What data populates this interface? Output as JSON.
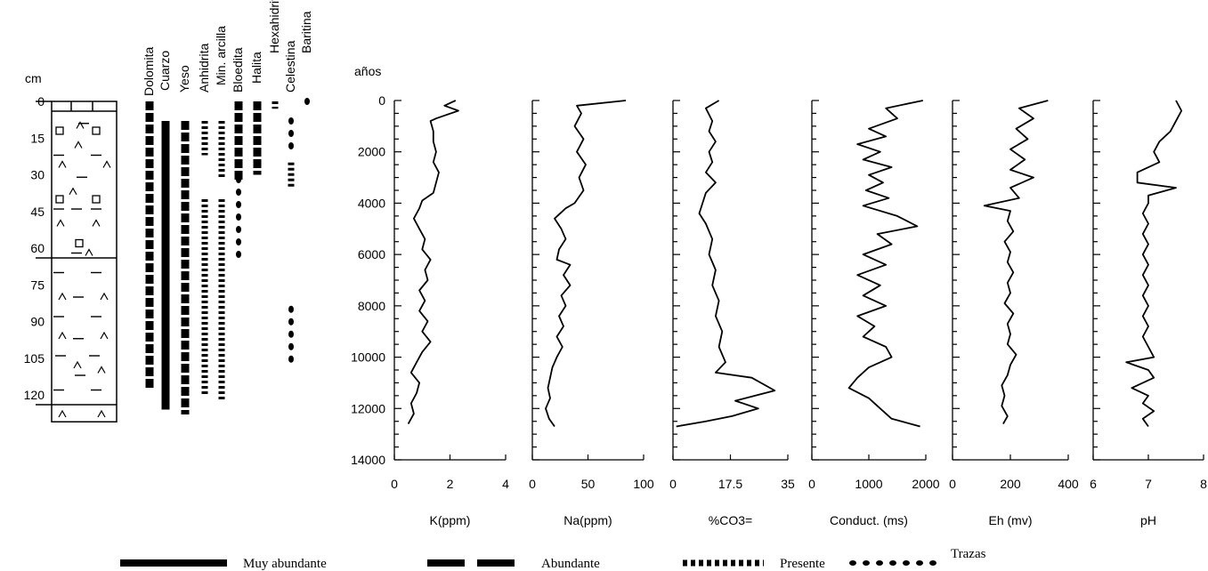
{
  "column": {
    "unit_label": "cm",
    "ticks": [
      "0",
      "15",
      "30",
      "45",
      "60",
      "75",
      "90",
      "105",
      "120"
    ]
  },
  "minerals": {
    "names": [
      "Dolomita",
      "Cuarzo",
      "Yeso",
      "Anhidrita",
      "Min. arcilla",
      "Bloedita",
      "Halita",
      "Hexahidrita",
      "Celestina",
      "Baritina"
    ],
    "occurrence": [
      {
        "name": "Dolomita",
        "segments": [
          {
            "from": 0,
            "to": 118,
            "style": "dashed"
          }
        ]
      },
      {
        "name": "Cuarzo",
        "segments": [
          {
            "from": 8,
            "to": 126,
            "style": "solid"
          }
        ]
      },
      {
        "name": "Yeso",
        "segments": [
          {
            "from": 8,
            "to": 128,
            "style": "dashed"
          }
        ]
      },
      {
        "name": "Anhidrita",
        "segments": [
          {
            "from": 8,
            "to": 22,
            "style": "dotted"
          },
          {
            "from": 40,
            "to": 120,
            "style": "dotted"
          }
        ]
      },
      {
        "name": "Min. arcilla",
        "segments": [
          {
            "from": 8,
            "to": 32,
            "style": "dotted"
          },
          {
            "from": 40,
            "to": 122,
            "style": "dotted"
          }
        ]
      },
      {
        "name": "Bloedita",
        "segments": [
          {
            "from": 0,
            "to": 32,
            "style": "dashed"
          },
          {
            "from": 32,
            "to": 63,
            "style": "dots"
          }
        ]
      },
      {
        "name": "Halita",
        "segments": [
          {
            "from": 0,
            "to": 30,
            "style": "dashed"
          }
        ]
      },
      {
        "name": "Hexahidrita",
        "segments": [
          {
            "from": 0,
            "to": 3,
            "style": "dotted"
          }
        ]
      },
      {
        "name": "Celestina",
        "segments": [
          {
            "from": 8,
            "to": 22,
            "style": "dots"
          },
          {
            "from": 25,
            "to": 35,
            "style": "dotted"
          },
          {
            "from": 85,
            "to": 106,
            "style": "dots"
          }
        ]
      },
      {
        "name": "Baritina",
        "segments": [
          {
            "from": 0,
            "to": 2,
            "style": "dots"
          }
        ]
      }
    ]
  },
  "legend": [
    {
      "style": "solid",
      "label": "Muy abundante"
    },
    {
      "style": "dashed",
      "label": "Abundante"
    },
    {
      "style": "dotted",
      "label": "Presente"
    },
    {
      "style": "dots",
      "label": "Trazas"
    }
  ],
  "chart_data": {
    "type": "line",
    "y_axis_label": "años",
    "y_range": [
      0,
      14000
    ],
    "y_ticks": [
      "0",
      "2000",
      "4000",
      "6000",
      "8000",
      "10000",
      "12000",
      "14000"
    ],
    "panels": [
      {
        "xlabel": "K(ppm)",
        "xlim": [
          0,
          4
        ],
        "xticks": [
          "0",
          "2",
          "4"
        ],
        "points": [
          [
            2.2,
            0
          ],
          [
            1.8,
            200
          ],
          [
            2.3,
            400
          ],
          [
            1.5,
            700
          ],
          [
            1.3,
            800
          ],
          [
            1.4,
            1200
          ],
          [
            1.4,
            1600
          ],
          [
            1.5,
            2000
          ],
          [
            1.4,
            2400
          ],
          [
            1.6,
            2800
          ],
          [
            1.5,
            3200
          ],
          [
            1.4,
            3600
          ],
          [
            1.0,
            3900
          ],
          [
            0.9,
            4200
          ],
          [
            0.7,
            4600
          ],
          [
            0.9,
            5000
          ],
          [
            1.1,
            5400
          ],
          [
            1.0,
            5800
          ],
          [
            1.3,
            6200
          ],
          [
            1.1,
            6600
          ],
          [
            1.2,
            7000
          ],
          [
            0.9,
            7400
          ],
          [
            1.1,
            7800
          ],
          [
            0.9,
            8200
          ],
          [
            1.2,
            8600
          ],
          [
            1.0,
            9000
          ],
          [
            1.3,
            9400
          ],
          [
            1.0,
            9800
          ],
          [
            0.8,
            10200
          ],
          [
            0.6,
            10600
          ],
          [
            0.9,
            11000
          ],
          [
            0.8,
            11400
          ],
          [
            0.6,
            11800
          ],
          [
            0.7,
            12200
          ],
          [
            0.5,
            12600
          ]
        ]
      },
      {
        "xlabel": "Na(ppm)",
        "xlim": [
          0,
          100
        ],
        "xticks": [
          "0",
          "50",
          "100"
        ],
        "points": [
          [
            84,
            0
          ],
          [
            40,
            200
          ],
          [
            44,
            500
          ],
          [
            38,
            1000
          ],
          [
            46,
            1500
          ],
          [
            40,
            2000
          ],
          [
            48,
            2500
          ],
          [
            42,
            3000
          ],
          [
            46,
            3500
          ],
          [
            38,
            4000
          ],
          [
            30,
            4200
          ],
          [
            20,
            4600
          ],
          [
            26,
            5000
          ],
          [
            30,
            5400
          ],
          [
            24,
            5800
          ],
          [
            22,
            6200
          ],
          [
            34,
            6400
          ],
          [
            28,
            6800
          ],
          [
            34,
            7200
          ],
          [
            26,
            7600
          ],
          [
            30,
            8000
          ],
          [
            24,
            8400
          ],
          [
            28,
            8800
          ],
          [
            22,
            9200
          ],
          [
            27,
            9600
          ],
          [
            22,
            10000
          ],
          [
            18,
            10400
          ],
          [
            16,
            10800
          ],
          [
            14,
            11200
          ],
          [
            16,
            11600
          ],
          [
            12,
            12000
          ],
          [
            15,
            12400
          ],
          [
            20,
            12700
          ]
        ]
      },
      {
        "xlabel": "%CO3=",
        "xlim": [
          0,
          35
        ],
        "xticks": [
          "0",
          "17.5",
          "35"
        ],
        "points": [
          [
            14,
            0
          ],
          [
            10,
            300
          ],
          [
            12,
            800
          ],
          [
            11,
            1200
          ],
          [
            13,
            1600
          ],
          [
            11,
            2000
          ],
          [
            12,
            2400
          ],
          [
            10,
            2800
          ],
          [
            13,
            3200
          ],
          [
            10,
            3600
          ],
          [
            9,
            4000
          ],
          [
            8,
            4400
          ],
          [
            10,
            4800
          ],
          [
            12,
            5400
          ],
          [
            11,
            6000
          ],
          [
            13,
            6600
          ],
          [
            12,
            7200
          ],
          [
            14,
            7800
          ],
          [
            13,
            8400
          ],
          [
            15,
            9000
          ],
          [
            14,
            9600
          ],
          [
            16,
            10200
          ],
          [
            13,
            10600
          ],
          [
            24,
            10800
          ],
          [
            31,
            11300
          ],
          [
            19,
            11700
          ],
          [
            26,
            12000
          ],
          [
            18,
            12300
          ],
          [
            10,
            12500
          ],
          [
            1,
            12700
          ]
        ]
      },
      {
        "xlabel": "Conduct. (ms)",
        "xlim": [
          0,
          2000
        ],
        "xticks": [
          "0",
          "1000",
          "2000"
        ],
        "points": [
          [
            1950,
            0
          ],
          [
            1300,
            300
          ],
          [
            1500,
            700
          ],
          [
            1000,
            1100
          ],
          [
            1300,
            1400
          ],
          [
            800,
            1700
          ],
          [
            1200,
            2000
          ],
          [
            900,
            2300
          ],
          [
            1400,
            2600
          ],
          [
            1000,
            2900
          ],
          [
            1250,
            3200
          ],
          [
            950,
            3500
          ],
          [
            1350,
            3800
          ],
          [
            900,
            4100
          ],
          [
            1500,
            4500
          ],
          [
            1850,
            4900
          ],
          [
            1150,
            5200
          ],
          [
            1400,
            5600
          ],
          [
            900,
            6000
          ],
          [
            1300,
            6400
          ],
          [
            800,
            6800
          ],
          [
            1200,
            7200
          ],
          [
            900,
            7600
          ],
          [
            1300,
            8000
          ],
          [
            800,
            8400
          ],
          [
            1100,
            8800
          ],
          [
            900,
            9200
          ],
          [
            1300,
            9600
          ],
          [
            1400,
            10000
          ],
          [
            1000,
            10400
          ],
          [
            800,
            10800
          ],
          [
            650,
            11200
          ],
          [
            1000,
            11600
          ],
          [
            1200,
            12000
          ],
          [
            1400,
            12400
          ],
          [
            1900,
            12700
          ]
        ]
      },
      {
        "xlabel": "Eh (mv)",
        "xlim": [
          0,
          400
        ],
        "xticks": [
          "0",
          "200",
          "400"
        ],
        "points": [
          [
            330,
            0
          ],
          [
            230,
            300
          ],
          [
            280,
            700
          ],
          [
            220,
            1100
          ],
          [
            260,
            1500
          ],
          [
            200,
            1900
          ],
          [
            250,
            2300
          ],
          [
            200,
            2700
          ],
          [
            280,
            3000
          ],
          [
            200,
            3400
          ],
          [
            230,
            3800
          ],
          [
            110,
            4100
          ],
          [
            200,
            4300
          ],
          [
            190,
            4700
          ],
          [
            210,
            5100
          ],
          [
            180,
            5500
          ],
          [
            200,
            5900
          ],
          [
            190,
            6300
          ],
          [
            210,
            6700
          ],
          [
            190,
            7100
          ],
          [
            200,
            7500
          ],
          [
            180,
            7900
          ],
          [
            210,
            8300
          ],
          [
            190,
            8700
          ],
          [
            200,
            9100
          ],
          [
            190,
            9500
          ],
          [
            220,
            9900
          ],
          [
            200,
            10300
          ],
          [
            190,
            10700
          ],
          [
            170,
            11100
          ],
          [
            180,
            11500
          ],
          [
            170,
            11900
          ],
          [
            190,
            12300
          ],
          [
            175,
            12600
          ]
        ]
      },
      {
        "xlabel": "pH",
        "xlim": [
          6,
          8
        ],
        "xticks": [
          "6",
          "7",
          "8"
        ],
        "points": [
          [
            7.5,
            0
          ],
          [
            7.6,
            400
          ],
          [
            7.5,
            800
          ],
          [
            7.4,
            1200
          ],
          [
            7.2,
            1600
          ],
          [
            7.1,
            2000
          ],
          [
            7.2,
            2400
          ],
          [
            6.8,
            2800
          ],
          [
            6.8,
            3200
          ],
          [
            7.5,
            3400
          ],
          [
            7.0,
            3700
          ],
          [
            7.0,
            4000
          ],
          [
            6.9,
            4400
          ],
          [
            7.0,
            4800
          ],
          [
            6.9,
            5200
          ],
          [
            7.0,
            5600
          ],
          [
            6.9,
            6000
          ],
          [
            7.0,
            6400
          ],
          [
            6.9,
            6800
          ],
          [
            7.0,
            7200
          ],
          [
            6.9,
            7600
          ],
          [
            7.0,
            8000
          ],
          [
            6.9,
            8400
          ],
          [
            7.0,
            8800
          ],
          [
            6.9,
            9200
          ],
          [
            7.0,
            9600
          ],
          [
            7.1,
            10000
          ],
          [
            6.6,
            10200
          ],
          [
            7.0,
            10500
          ],
          [
            7.1,
            10800
          ],
          [
            6.7,
            11200
          ],
          [
            7.0,
            11500
          ],
          [
            6.9,
            11800
          ],
          [
            7.1,
            12100
          ],
          [
            6.9,
            12400
          ],
          [
            7.0,
            12700
          ]
        ]
      }
    ]
  }
}
